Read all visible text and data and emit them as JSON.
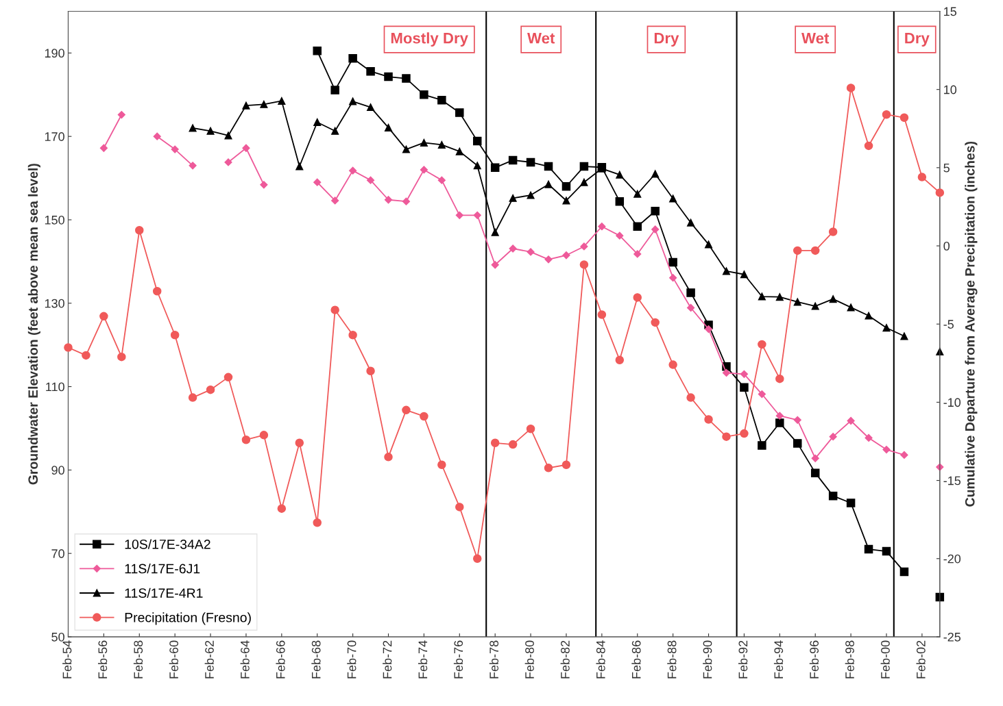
{
  "chart_data": {
    "type": "line",
    "xlabel": null,
    "ylabel": "Groundwater Elevation (feet above mean sea level)",
    "y2label": "Cumulative Departure from Average Precipitation (inches)",
    "x": [
      "1954-02",
      "1955-02",
      "1956-02",
      "1957-02",
      "1958-02",
      "1959-02",
      "1960-02",
      "1961-02",
      "1962-02",
      "1963-02",
      "1964-02",
      "1965-02",
      "1966-02",
      "1967-02",
      "1968-02",
      "1969-02",
      "1970-02",
      "1971-02",
      "1972-02",
      "1973-02",
      "1974-02",
      "1975-02",
      "1976-02",
      "1977-02",
      "1978-02",
      "1979-02",
      "1980-02",
      "1981-02",
      "1982-02",
      "1983-02",
      "1984-02",
      "1985-02",
      "1986-02",
      "1987-02",
      "1988-02",
      "1989-02",
      "1990-02",
      "1991-02",
      "1992-02",
      "1993-02",
      "1994-02",
      "1995-02",
      "1996-02",
      "1997-02",
      "1998-02",
      "1999-02",
      "2000-02",
      "2001-02",
      "2002-02",
      "2003-02"
    ],
    "series": [
      {
        "name": "10S/17E-34A2",
        "color": "#000000",
        "marker": "square",
        "values": [
          null,
          null,
          null,
          null,
          null,
          null,
          null,
          null,
          null,
          null,
          null,
          null,
          null,
          null,
          190.5,
          181.1,
          188.7,
          185.6,
          184.3,
          183.9,
          180.0,
          178.7,
          175.7,
          168.9,
          162.5,
          164.3,
          163.8,
          162.8,
          158.0,
          162.8,
          162.6,
          154.4,
          148.4,
          152.1,
          139.8,
          132.5,
          124.8,
          114.8,
          109.8,
          95.9,
          101.3,
          96.4,
          89.3,
          83.8,
          82.1,
          71.0,
          70.5,
          65.6,
          null,
          59.5
        ]
      },
      {
        "name": "11S/17E-6J1",
        "color": "#ee5a9a",
        "marker": "diamond",
        "values": [
          null,
          null,
          167.2,
          175.2,
          null,
          170.0,
          166.9,
          163.0,
          null,
          163.8,
          167.2,
          158.4,
          null,
          null,
          159.0,
          154.6,
          161.8,
          159.5,
          154.8,
          154.4,
          162.0,
          159.5,
          151.1,
          151.1,
          139.2,
          143.1,
          142.3,
          140.5,
          141.5,
          143.6,
          148.4,
          146.2,
          141.8,
          147.7,
          136.1,
          128.9,
          123.8,
          113.3,
          113.0,
          108.2,
          103.0,
          102.0,
          92.8,
          98.0,
          101.8,
          97.7,
          94.9,
          93.6,
          null,
          90.7
        ]
      },
      {
        "name": "11S/17E-4R1",
        "color": "#000000",
        "marker": "triangle",
        "values": [
          null,
          null,
          null,
          null,
          null,
          null,
          null,
          172.0,
          171.3,
          170.2,
          177.4,
          177.7,
          178.5,
          162.8,
          173.4,
          171.3,
          178.4,
          177.0,
          172.1,
          166.9,
          168.5,
          168.0,
          166.4,
          163.0,
          147.0,
          155.2,
          155.9,
          158.5,
          154.6,
          159.0,
          162.3,
          160.8,
          156.2,
          161.0,
          155.1,
          149.3,
          144.1,
          137.7,
          136.9,
          131.6,
          131.5,
          130.3,
          129.3,
          131.0,
          129.0,
          127.0,
          124.1,
          122.1,
          null,
          118.4
        ]
      },
      {
        "name": "Precipitation (Fresno)",
        "color": "#f05a5a",
        "marker": "circle",
        "axis": "y2",
        "values": [
          -6.5,
          -7.0,
          -4.5,
          -7.1,
          1.0,
          -2.9,
          -5.7,
          -9.7,
          -9.2,
          -8.4,
          -12.4,
          -12.1,
          -16.8,
          -12.6,
          -17.7,
          -4.1,
          -5.7,
          -8.0,
          -13.5,
          -10.5,
          -10.9,
          -14.0,
          -16.7,
          -20.0,
          -12.6,
          -12.7,
          -11.7,
          -14.2,
          -14.0,
          -1.2,
          -4.4,
          -7.3,
          -3.3,
          -4.9,
          -7.6,
          -9.7,
          -11.1,
          -12.2,
          -12.0,
          -6.3,
          -8.5,
          -0.3,
          -0.3,
          0.9,
          10.1,
          6.4,
          8.4,
          8.2,
          4.4,
          3.4
        ]
      }
    ],
    "xlim": [
      "1954-02",
      "2003-02"
    ],
    "xticks": [
      {
        "value": "1954-02",
        "label": "Feb-54"
      },
      {
        "value": "1956-02",
        "label": "Feb-56"
      },
      {
        "value": "1958-02",
        "label": "Feb-58"
      },
      {
        "value": "1960-02",
        "label": "Feb-60"
      },
      {
        "value": "1962-02",
        "label": "Feb-62"
      },
      {
        "value": "1964-02",
        "label": "Feb-64"
      },
      {
        "value": "1966-02",
        "label": "Feb-66"
      },
      {
        "value": "1968-02",
        "label": "Feb-68"
      },
      {
        "value": "1970-02",
        "label": "Feb-70"
      },
      {
        "value": "1972-02",
        "label": "Feb-72"
      },
      {
        "value": "1974-02",
        "label": "Feb-74"
      },
      {
        "value": "1976-02",
        "label": "Feb-76"
      },
      {
        "value": "1978-02",
        "label": "Feb-78"
      },
      {
        "value": "1980-02",
        "label": "Feb-80"
      },
      {
        "value": "1982-02",
        "label": "Feb-82"
      },
      {
        "value": "1984-02",
        "label": "Feb-84"
      },
      {
        "value": "1986-02",
        "label": "Feb-86"
      },
      {
        "value": "1988-02",
        "label": "Feb-88"
      },
      {
        "value": "1990-02",
        "label": "Feb-90"
      },
      {
        "value": "1992-02",
        "label": "Feb-92"
      },
      {
        "value": "1994-02",
        "label": "Feb-94"
      },
      {
        "value": "1996-02",
        "label": "Feb-96"
      },
      {
        "value": "1998-02",
        "label": "Feb-98"
      },
      {
        "value": "2000-02",
        "label": "Feb-00"
      },
      {
        "value": "2002-02",
        "label": "Feb-02"
      }
    ],
    "ylim": [
      50,
      200
    ],
    "yticks": [
      50,
      70,
      90,
      110,
      130,
      150,
      170,
      190
    ],
    "y2lim": [
      -25,
      15
    ],
    "y2ticks": [
      -25,
      -20,
      -15,
      -10,
      -5,
      0,
      5,
      10,
      15
    ],
    "ref_lines": [
      {
        "axis": "x",
        "value": "1977-08",
        "color": "#000000"
      },
      {
        "axis": "x",
        "value": "1983-10",
        "color": "#000000"
      },
      {
        "axis": "x",
        "value": "1991-09",
        "color": "#000000"
      },
      {
        "axis": "x",
        "value": "2000-07",
        "color": "#000000"
      }
    ],
    "annotations": [
      "Mostly Dry",
      "Wet",
      "Dry",
      "Wet",
      "Dry"
    ],
    "legend": "bottom left",
    "grid": false,
    "line_style": "solid"
  }
}
